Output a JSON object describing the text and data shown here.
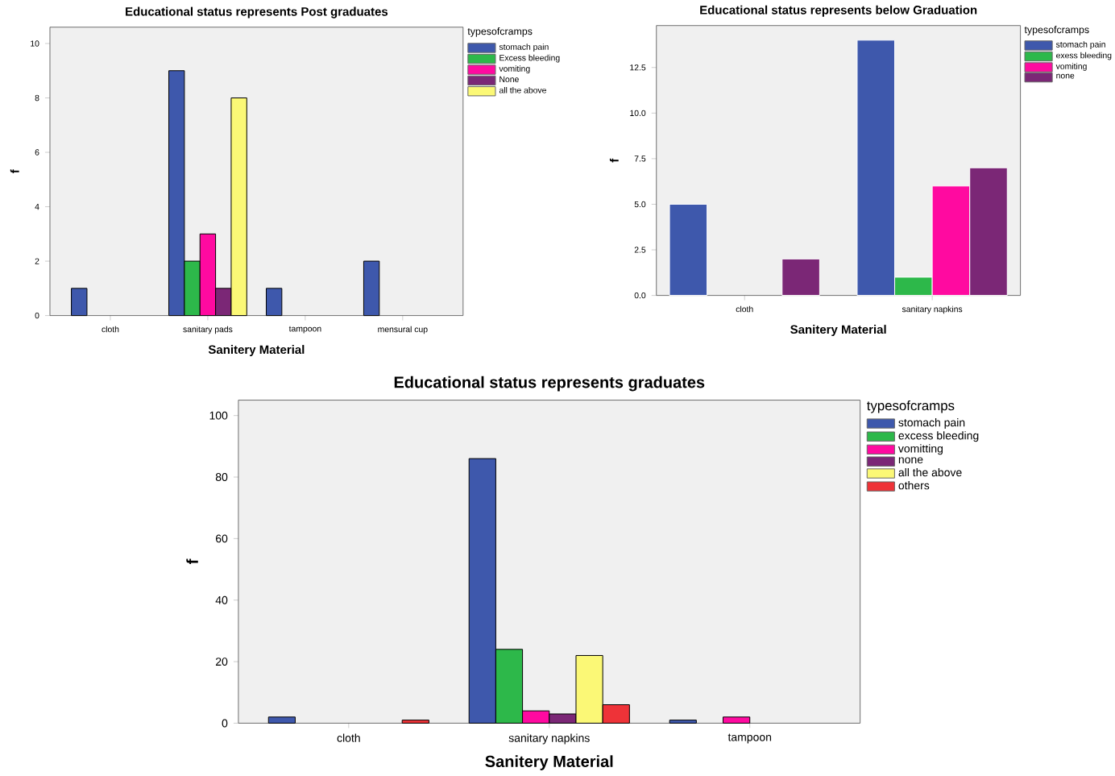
{
  "chart_data": [
    {
      "type": "bar",
      "title": "Educational status represents Post graduates",
      "xlabel": "Sanitery Material",
      "ylabel": "f",
      "legend_title": "typesofcramps",
      "legend": "top right",
      "categories": [
        "cloth",
        "sanitary pads",
        "tampoon",
        "mensural cup"
      ],
      "ylim": [
        0,
        10.6
      ],
      "yticks": [
        0,
        2,
        4,
        6,
        8,
        10
      ],
      "series": [
        {
          "name": "stomach pain",
          "color": "#3e58ac",
          "values": [
            1,
            9,
            1,
            2
          ]
        },
        {
          "name": "Excess bleeding",
          "color": "#2db84a",
          "values": [
            null,
            2,
            null,
            null
          ]
        },
        {
          "name": "vomiting",
          "color": "#ff0aa0",
          "values": [
            null,
            3,
            null,
            null
          ]
        },
        {
          "name": "None",
          "color": "#7b2776",
          "values": [
            null,
            1,
            null,
            null
          ]
        },
        {
          "name": "all the above",
          "color": "#fbf876",
          "values": [
            null,
            8,
            null,
            null
          ]
        }
      ]
    },
    {
      "type": "bar",
      "title": "Educational status represents below Graduation",
      "xlabel": "Sanitery Material",
      "ylabel": "f",
      "legend_title": "typesofcramps",
      "legend": "top right",
      "categories": [
        "cloth",
        "sanitary napkins"
      ],
      "ylim": [
        0,
        14.8
      ],
      "yticks": [
        {
          "value": 0,
          "label": "0.0"
        },
        2.5,
        {
          "value": 5,
          "label": "5.0"
        },
        7.5,
        {
          "value": 10,
          "label": "10.0"
        },
        12.5
      ],
      "series": [
        {
          "name": "stomach pain",
          "color": "#3e58ac",
          "values": [
            5,
            14
          ]
        },
        {
          "name": "exess bleeding",
          "color": "#2db84a",
          "values": [
            null,
            1
          ]
        },
        {
          "name": "vomiting",
          "color": "#ff0aa0",
          "values": [
            null,
            6
          ]
        },
        {
          "name": "none",
          "color": "#7b2776",
          "values": [
            2,
            7
          ]
        }
      ]
    },
    {
      "type": "bar",
      "title": "Educational status represents graduates",
      "xlabel": "Sanitery Material",
      "ylabel": "f",
      "legend_title": "typesofcramps",
      "legend": "top right",
      "categories": [
        "cloth",
        "sanitary napkins",
        "tampoon"
      ],
      "ylim": [
        0,
        105
      ],
      "yticks": [
        0,
        20,
        40,
        60,
        80,
        100
      ],
      "series": [
        {
          "name": "stomach pain",
          "color": "#3e58ac",
          "values": [
            2,
            86,
            1
          ]
        },
        {
          "name": "excess bleeding",
          "color": "#2db84a",
          "values": [
            null,
            24,
            null
          ]
        },
        {
          "name": "vomitting",
          "color": "#ff0aa0",
          "values": [
            null,
            4,
            2
          ]
        },
        {
          "name": "none",
          "color": "#7b2776",
          "values": [
            null,
            3,
            null
          ]
        },
        {
          "name": "all the above",
          "color": "#fbf876",
          "values": [
            null,
            22,
            null
          ]
        },
        {
          "name": "others",
          "color": "#ee3338",
          "values": [
            1,
            6,
            null
          ]
        }
      ]
    }
  ]
}
